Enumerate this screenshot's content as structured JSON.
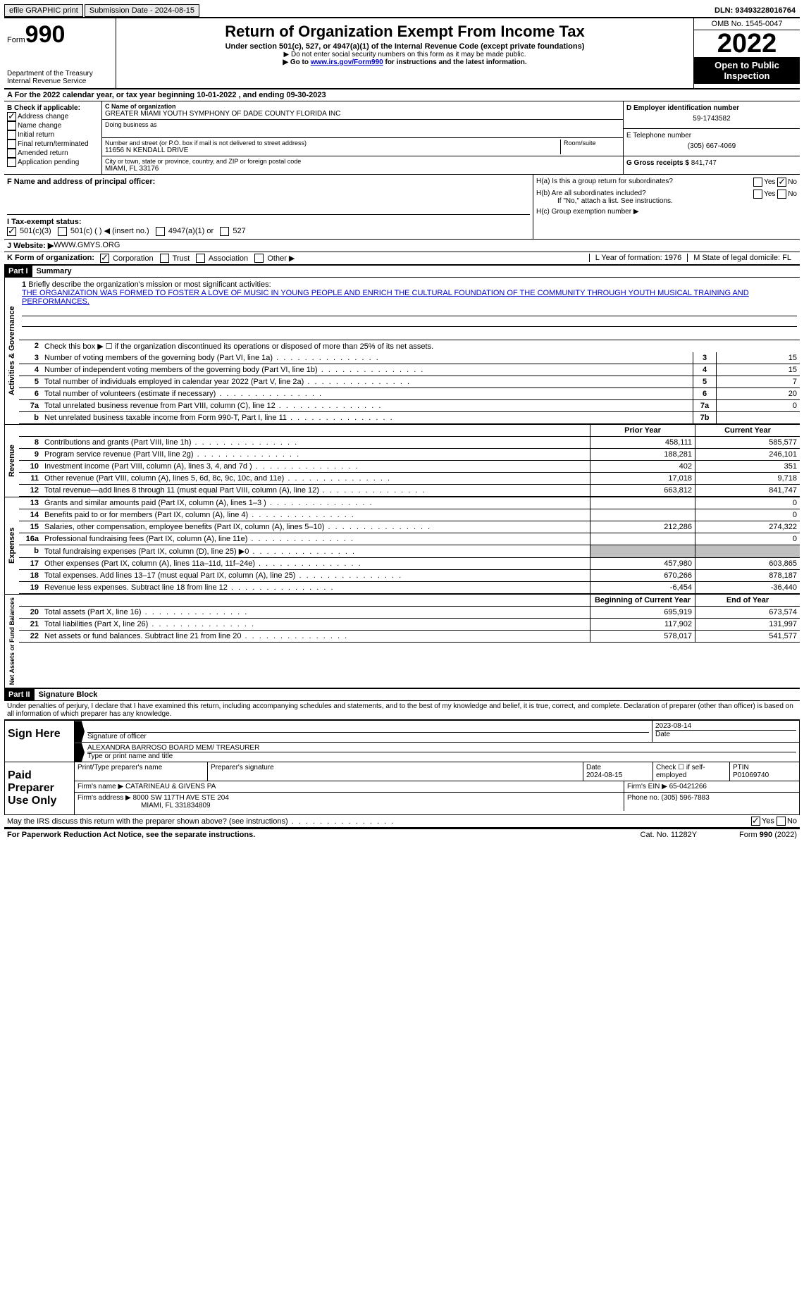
{
  "topbar": {
    "efile": "efile GRAPHIC print",
    "subdate_label": "Submission Date - ",
    "subdate": "2024-08-15",
    "dln_label": "DLN: ",
    "dln": "93493228016764"
  },
  "header": {
    "form_label": "Form",
    "form_num": "990",
    "dept": "Department of the Treasury Internal Revenue Service",
    "title": "Return of Organization Exempt From Income Tax",
    "subtitle": "Under section 501(c), 527, or 4947(a)(1) of the Internal Revenue Code (except private foundations)",
    "note1": "▶ Do not enter social security numbers on this form as it may be made public.",
    "note2_pre": "▶ Go to ",
    "note2_link": "www.irs.gov/Form990",
    "note2_post": " for instructions and the latest information.",
    "omb": "OMB No. 1545-0047",
    "year": "2022",
    "inspect": "Open to Public Inspection"
  },
  "line_a": "For the 2022 calendar year, or tax year beginning 10-01-2022   , and ending 09-30-2023",
  "col_b": {
    "label": "B Check if applicable:",
    "items": [
      "Address change",
      "Name change",
      "Initial return",
      "Final return/terminated",
      "Amended return",
      "Application pending"
    ],
    "checked_idx": 0
  },
  "col_c": {
    "name_label": "C Name of organization",
    "name": "GREATER MIAMI YOUTH SYMPHONY OF DADE COUNTY FLORIDA INC",
    "dba_label": "Doing business as",
    "addr_label": "Number and street (or P.O. box if mail is not delivered to street address)",
    "room_label": "Room/suite",
    "addr": "11656 N KENDALL DRIVE",
    "city_label": "City or town, state or province, country, and ZIP or foreign postal code",
    "city": "MIAMI, FL  33176"
  },
  "col_d": {
    "ein_label": "D Employer identification number",
    "ein": "59-1743582",
    "tel_label": "E Telephone number",
    "tel": "(305) 667-4069",
    "gross_label": "G Gross receipts $ ",
    "gross": "841,747"
  },
  "row_f": {
    "label": "F  Name and address of principal officer:",
    "ha": "H(a)  Is this a group return for subordinates?",
    "hb": "H(b)  Are all subordinates included?",
    "hb_note": "If \"No,\" attach a list. See instructions.",
    "hc": "H(c)  Group exemption number ▶"
  },
  "row_i": {
    "label": "I   Tax-exempt status:",
    "opts": [
      "501(c)(3)",
      "501(c) (  ) ◀ (insert no.)",
      "4947(a)(1) or",
      "527"
    ]
  },
  "row_j": {
    "label": "J   Website: ▶  ",
    "val": "WWW.GMYS.ORG"
  },
  "row_k": {
    "label": "K Form of organization:",
    "opts": [
      "Corporation",
      "Trust",
      "Association",
      "Other ▶"
    ],
    "l": "L Year of formation: 1976",
    "m": "M State of legal domicile: FL"
  },
  "part1": {
    "header": "Part I",
    "title": "Summary",
    "mission_label": "Briefly describe the organization's mission or most significant activities:",
    "mission": "THE ORGANIZATION WAS FORMED TO FOSTER A LOVE OF MUSIC IN YOUNG PEOPLE AND ENRICH THE CULTURAL FOUNDATION OF THE COMMUNITY THROUGH YOUTH MUSICAL TRAINING AND PERFORMANCES.",
    "line2": "Check this box ▶ ☐  if the organization discontinued its operations or disposed of more than 25% of its net assets.",
    "gov_label": "Activities & Governance",
    "rev_label": "Revenue",
    "exp_label": "Expenses",
    "net_label": "Net Assets or Fund Balances",
    "prior_year": "Prior Year",
    "current_year": "Current Year",
    "begin_year": "Beginning of Current Year",
    "end_year": "End of Year",
    "lines_gov": [
      {
        "n": "3",
        "d": "Number of voting members of the governing body (Part VI, line 1a)",
        "box": "3",
        "v": "15"
      },
      {
        "n": "4",
        "d": "Number of independent voting members of the governing body (Part VI, line 1b)",
        "box": "4",
        "v": "15"
      },
      {
        "n": "5",
        "d": "Total number of individuals employed in calendar year 2022 (Part V, line 2a)",
        "box": "5",
        "v": "7"
      },
      {
        "n": "6",
        "d": "Total number of volunteers (estimate if necessary)",
        "box": "6",
        "v": "20"
      },
      {
        "n": "7a",
        "d": "Total unrelated business revenue from Part VIII, column (C), line 12",
        "box": "7a",
        "v": "0"
      },
      {
        "n": "b",
        "d": "Net unrelated business taxable income from Form 990-T, Part I, line 11",
        "box": "7b",
        "v": ""
      }
    ],
    "lines_rev": [
      {
        "n": "8",
        "d": "Contributions and grants (Part VIII, line 1h)",
        "p": "458,111",
        "c": "585,577"
      },
      {
        "n": "9",
        "d": "Program service revenue (Part VIII, line 2g)",
        "p": "188,281",
        "c": "246,101"
      },
      {
        "n": "10",
        "d": "Investment income (Part VIII, column (A), lines 3, 4, and 7d )",
        "p": "402",
        "c": "351"
      },
      {
        "n": "11",
        "d": "Other revenue (Part VIII, column (A), lines 5, 6d, 8c, 9c, 10c, and 11e)",
        "p": "17,018",
        "c": "9,718"
      },
      {
        "n": "12",
        "d": "Total revenue—add lines 8 through 11 (must equal Part VIII, column (A), line 12)",
        "p": "663,812",
        "c": "841,747"
      }
    ],
    "lines_exp": [
      {
        "n": "13",
        "d": "Grants and similar amounts paid (Part IX, column (A), lines 1–3 )",
        "p": "",
        "c": "0"
      },
      {
        "n": "14",
        "d": "Benefits paid to or for members (Part IX, column (A), line 4)",
        "p": "",
        "c": "0"
      },
      {
        "n": "15",
        "d": "Salaries, other compensation, employee benefits (Part IX, column (A), lines 5–10)",
        "p": "212,286",
        "c": "274,322"
      },
      {
        "n": "16a",
        "d": "Professional fundraising fees (Part IX, column (A), line 11e)",
        "p": "",
        "c": "0"
      },
      {
        "n": "b",
        "d": "Total fundraising expenses (Part IX, column (D), line 25) ▶0",
        "p": "GREY",
        "c": "GREY"
      },
      {
        "n": "17",
        "d": "Other expenses (Part IX, column (A), lines 11a–11d, 11f–24e)",
        "p": "457,980",
        "c": "603,865"
      },
      {
        "n": "18",
        "d": "Total expenses. Add lines 13–17 (must equal Part IX, column (A), line 25)",
        "p": "670,266",
        "c": "878,187"
      },
      {
        "n": "19",
        "d": "Revenue less expenses. Subtract line 18 from line 12",
        "p": "-6,454",
        "c": "-36,440"
      }
    ],
    "lines_net": [
      {
        "n": "20",
        "d": "Total assets (Part X, line 16)",
        "p": "695,919",
        "c": "673,574"
      },
      {
        "n": "21",
        "d": "Total liabilities (Part X, line 26)",
        "p": "117,902",
        "c": "131,997"
      },
      {
        "n": "22",
        "d": "Net assets or fund balances. Subtract line 21 from line 20",
        "p": "578,017",
        "c": "541,577"
      }
    ]
  },
  "part2": {
    "header": "Part II",
    "title": "Signature Block",
    "penalties": "Under penalties of perjury, I declare that I have examined this return, including accompanying schedules and statements, and to the best of my knowledge and belief, it is true, correct, and complete. Declaration of preparer (other than officer) is based on all information of which preparer has any knowledge.",
    "sign_here": "Sign Here",
    "sig_officer": "Signature of officer",
    "sig_date": "2023-08-14",
    "date_label": "Date",
    "officer_name": "ALEXANDRA BARROSO  BOARD MEM/ TREASURER",
    "type_name": "Type or print name and title",
    "paid_prep": "Paid Preparer Use Only",
    "prep_name_label": "Print/Type preparer's name",
    "prep_sig_label": "Preparer's signature",
    "prep_date": "2024-08-15",
    "check_self": "Check ☐ if self-employed",
    "ptin_label": "PTIN",
    "ptin": "P01069740",
    "firm_name_label": "Firm's name      ▶ ",
    "firm_name": "CATARINEAU & GIVENS PA",
    "firm_ein_label": "Firm's EIN ▶ ",
    "firm_ein": "65-0421266",
    "firm_addr_label": "Firm's address ▶ ",
    "firm_addr": "8000 SW 117TH AVE STE 204",
    "firm_city": "MIAMI, FL  331834809",
    "firm_phone_label": "Phone no. ",
    "firm_phone": "(305) 596-7883",
    "discuss": "May the IRS discuss this return with the preparer shown above? (see instructions)"
  },
  "footer": {
    "left": "For Paperwork Reduction Act Notice, see the separate instructions.",
    "mid": "Cat. No. 11282Y",
    "right": "Form 990 (2022)"
  }
}
